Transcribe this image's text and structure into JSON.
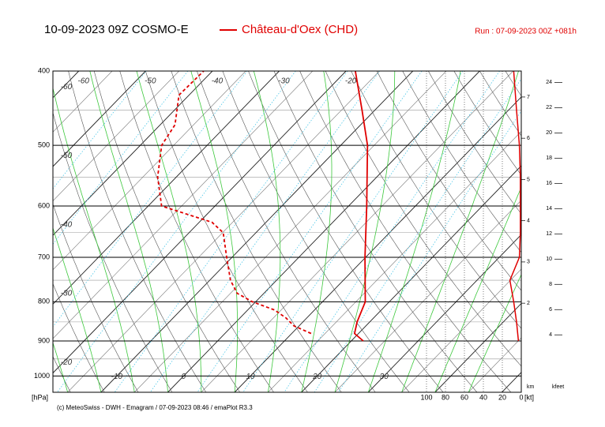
{
  "chart_data": {
    "type": "emagram",
    "title": "10-09-2023 09Z COSMO-E",
    "station": "Château-d'Oex (CHD)",
    "color": "#e00000",
    "run": "Run : 07-09-2023 00Z +081h",
    "credit": "(c) MeteoSwiss - DWH - Emagram / 07-09-2023 08:46 / emaPlot R3.3",
    "y_label": "[hPa]",
    "log_y": true,
    "ylim": [
      1050,
      400
    ],
    "yticks": [
      400,
      500,
      600,
      700,
      800,
      900,
      1000
    ],
    "xlim": [
      -17.2,
      52.9
    ],
    "isotherm_labels": {
      "top": [
        -60,
        -50,
        -40,
        -30,
        -20
      ],
      "left": [
        -60,
        -50,
        -40,
        -30,
        -20
      ],
      "bottom": [
        -10,
        0,
        10,
        20,
        30
      ]
    },
    "temperature": {
      "p": [
        900,
        880,
        850,
        800,
        700,
        600,
        500,
        450,
        400
      ],
      "values": [
        21.8,
        19.4,
        18.1,
        16.4,
        9.9,
        2.7,
        -6.0,
        -11.9,
        -18.6
      ]
    },
    "dewpoint": {
      "p": [
        880,
        860,
        840,
        820,
        800,
        780,
        750,
        700,
        650,
        630,
        600,
        550,
        500,
        470,
        430,
        400
      ],
      "values": [
        12.9,
        9.2,
        6.9,
        4.0,
        -0.5,
        -4.0,
        -6.9,
        -10.8,
        -14.9,
        -18.1,
        -28.0,
        -32.8,
        -36.8,
        -37.8,
        -41.5,
        -41.3
      ]
    },
    "wind": {
      "xlim": [
        100,
        0
      ],
      "xticks": [
        100,
        80,
        60,
        40,
        20,
        0
      ],
      "unit": "[kt]",
      "p": [
        900,
        850,
        800,
        750,
        700,
        650,
        600,
        550,
        500,
        450,
        400
      ],
      "speed": [
        3,
        5,
        8,
        12,
        2,
        1,
        1,
        1,
        2,
        5,
        8
      ]
    },
    "height_km": {
      "label": "km",
      "lim": [
        -0.16,
        7.63
      ],
      "ticks": [
        2,
        3,
        4,
        5,
        6,
        7
      ]
    },
    "height_kft": {
      "label": "kfeet",
      "lim": [
        -0.55,
        24.9
      ],
      "ticks": [
        4,
        6,
        8,
        10,
        12,
        14,
        16,
        18,
        20,
        22,
        24
      ]
    }
  }
}
